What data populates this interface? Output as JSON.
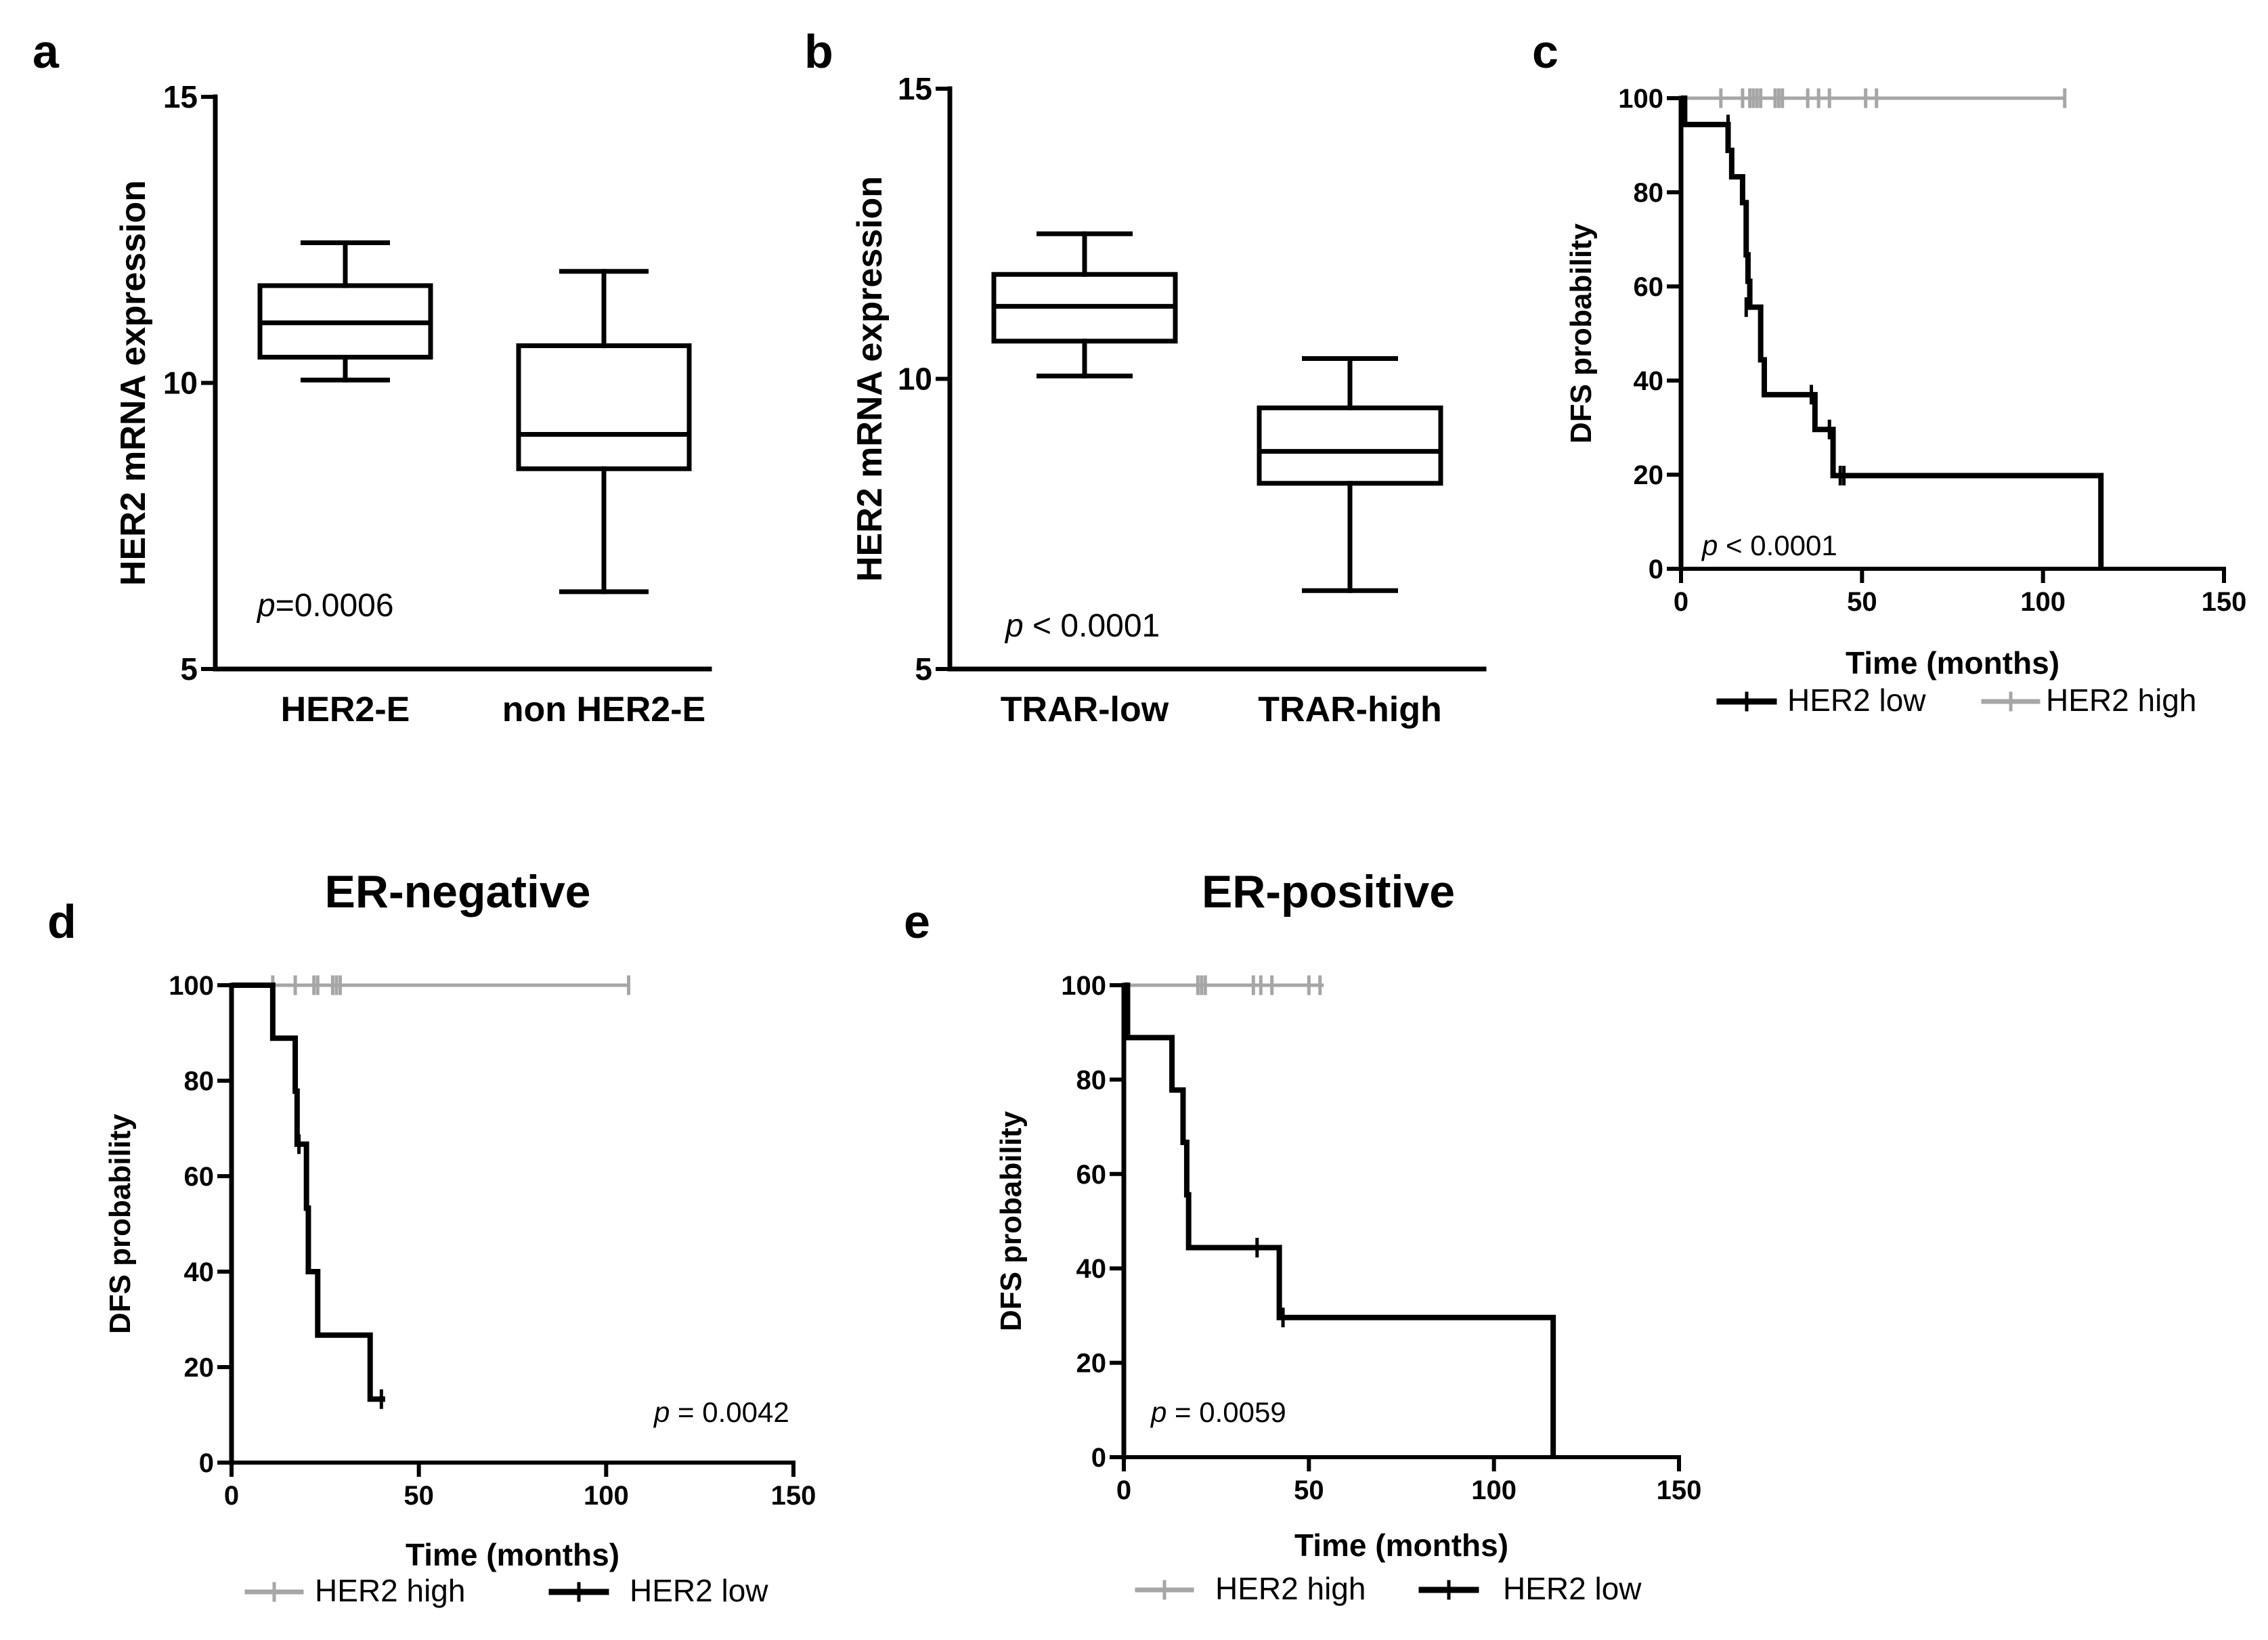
{
  "chart_data": [
    {
      "id": "a",
      "type": "box",
      "panel_label": "a",
      "ylabel": "HER2 mRNA expression",
      "ylim": [
        5,
        15
      ],
      "yticks": [
        "5",
        "10",
        "15"
      ],
      "categories": [
        "HER2-E",
        "non HER2-E"
      ],
      "boxes": [
        {
          "min": 10.05,
          "q1": 10.45,
          "median": 11.05,
          "q3": 11.7,
          "max": 12.45
        },
        {
          "min": 6.35,
          "q1": 8.5,
          "median": 9.1,
          "q3": 10.65,
          "max": 11.95
        }
      ],
      "p_label": "p",
      "p_value": "=0.0006"
    },
    {
      "id": "b",
      "type": "box",
      "panel_label": "b",
      "ylabel": "HER2 mRNA expression",
      "ylim": [
        5,
        15
      ],
      "yticks": [
        "5",
        "10",
        "15"
      ],
      "categories": [
        "TRAR-low",
        "TRAR-high"
      ],
      "boxes": [
        {
          "min": 10.05,
          "q1": 10.65,
          "median": 11.25,
          "q3": 11.8,
          "max": 12.5
        },
        {
          "min": 6.35,
          "q1": 8.2,
          "median": 8.75,
          "q3": 9.5,
          "max": 10.35
        }
      ],
      "p_label": "p",
      "p_value": " < 0.0001"
    },
    {
      "id": "c",
      "type": "line",
      "subtype": "kaplan-meier",
      "panel_label": "c",
      "xlabel": "Time (months)",
      "ylabel": "DFS probability",
      "xlim": [
        0,
        150
      ],
      "ylim": [
        0,
        100
      ],
      "xticks": [
        "0",
        "50",
        "100",
        "150"
      ],
      "yticks": [
        "0",
        "20",
        "40",
        "60",
        "80",
        "100"
      ],
      "p_label": "p",
      "p_value": " < 0.0001",
      "legend": [
        "HER2 low",
        "HER2 high"
      ],
      "series": [
        {
          "name": "HER2 low",
          "color": "#000000",
          "steps": [
            [
              0,
              100
            ],
            [
              1,
              94.4
            ],
            [
              13,
              88.9
            ],
            [
              14,
              83.3
            ],
            [
              17,
              77.8
            ],
            [
              18,
              66.7
            ],
            [
              18.5,
              61.1
            ],
            [
              19,
              55.6
            ],
            [
              22,
              44.4
            ],
            [
              23,
              37
            ],
            [
              37,
              29.6
            ],
            [
              42,
              19.8
            ],
            [
              116,
              0
            ]
          ],
          "end": 116,
          "censor": [
            [
              13,
              94.4
            ],
            [
              18,
              55.6
            ],
            [
              36,
              37
            ],
            [
              41,
              29.6
            ],
            [
              44,
              19.8
            ],
            [
              45,
              19.8
            ]
          ]
        },
        {
          "name": "HER2 high",
          "color": "#a6a6a6",
          "steps": [],
          "start_y": 100,
          "end": 106,
          "censor": [
            [
              11,
              100
            ],
            [
              17,
              100
            ],
            [
              19,
              100
            ],
            [
              20,
              100
            ],
            [
              21,
              100
            ],
            [
              22,
              100
            ],
            [
              26,
              100
            ],
            [
              27,
              100
            ],
            [
              28,
              100
            ],
            [
              35,
              100
            ],
            [
              38,
              100
            ],
            [
              41,
              100
            ],
            [
              51,
              100
            ],
            [
              54,
              100
            ],
            [
              106,
              100
            ]
          ]
        }
      ]
    },
    {
      "id": "d",
      "type": "line",
      "subtype": "kaplan-meier",
      "panel_label": "d",
      "title": "ER-negative",
      "xlabel": "Time (months)",
      "ylabel": "DFS probability",
      "xlim": [
        0,
        150
      ],
      "ylim": [
        0,
        100
      ],
      "xticks": [
        "0",
        "50",
        "100",
        "150"
      ],
      "yticks": [
        "0",
        "20",
        "40",
        "60",
        "80",
        "100"
      ],
      "p_label": "p",
      "p_value": " = 0.0042",
      "legend": [
        "HER2 high",
        "HER2 low"
      ],
      "series": [
        {
          "name": "HER2 high",
          "color": "#a6a6a6",
          "steps": [],
          "start_y": 100,
          "end": 106,
          "censor": [
            [
              11,
              100
            ],
            [
              17,
              100
            ],
            [
              22,
              100
            ],
            [
              23,
              100
            ],
            [
              27,
              100
            ],
            [
              28,
              100
            ],
            [
              29,
              100
            ],
            [
              106,
              100
            ]
          ]
        },
        {
          "name": "HER2 low",
          "color": "#000000",
          "steps": [
            [
              0,
              100
            ],
            [
              11,
              88.9
            ],
            [
              17,
              77.8
            ],
            [
              17.5,
              66.7
            ],
            [
              20,
              53.3
            ],
            [
              20.5,
              40
            ],
            [
              23,
              26.7
            ],
            [
              37,
              13.3
            ]
          ],
          "end": 41,
          "censor": [
            [
              18,
              66.7
            ],
            [
              40,
              13.3
            ]
          ]
        }
      ]
    },
    {
      "id": "e",
      "type": "line",
      "subtype": "kaplan-meier",
      "panel_label": "e",
      "title": "ER-positive",
      "xlabel": "Time (months)",
      "ylabel": "DFS probability",
      "xlim": [
        0,
        150
      ],
      "ylim": [
        0,
        100
      ],
      "xticks": [
        "0",
        "50",
        "100",
        "150"
      ],
      "yticks": [
        "0",
        "20",
        "40",
        "60",
        "80",
        "100"
      ],
      "p_label": "p",
      "p_value": " = 0.0059",
      "legend": [
        "HER2 high",
        "HER2 low"
      ],
      "series": [
        {
          "name": "HER2 high",
          "color": "#a6a6a6",
          "steps": [],
          "start_y": 100,
          "end": 54,
          "censor": [
            [
              20,
              100
            ],
            [
              21,
              100
            ],
            [
              22,
              100
            ],
            [
              35,
              100
            ],
            [
              37,
              100
            ],
            [
              40,
              100
            ],
            [
              50,
              100
            ],
            [
              53,
              100
            ]
          ]
        },
        {
          "name": "HER2 low",
          "color": "#000000",
          "steps": [
            [
              0,
              100
            ],
            [
              1,
              88.9
            ],
            [
              13,
              77.8
            ],
            [
              16,
              66.7
            ],
            [
              17,
              55.6
            ],
            [
              17.5,
              44.4
            ],
            [
              42,
              29.6
            ],
            [
              116,
              0
            ]
          ],
          "end": 116,
          "censor": [
            [
              36,
              44.4
            ],
            [
              43,
              29.6
            ]
          ]
        }
      ]
    }
  ]
}
